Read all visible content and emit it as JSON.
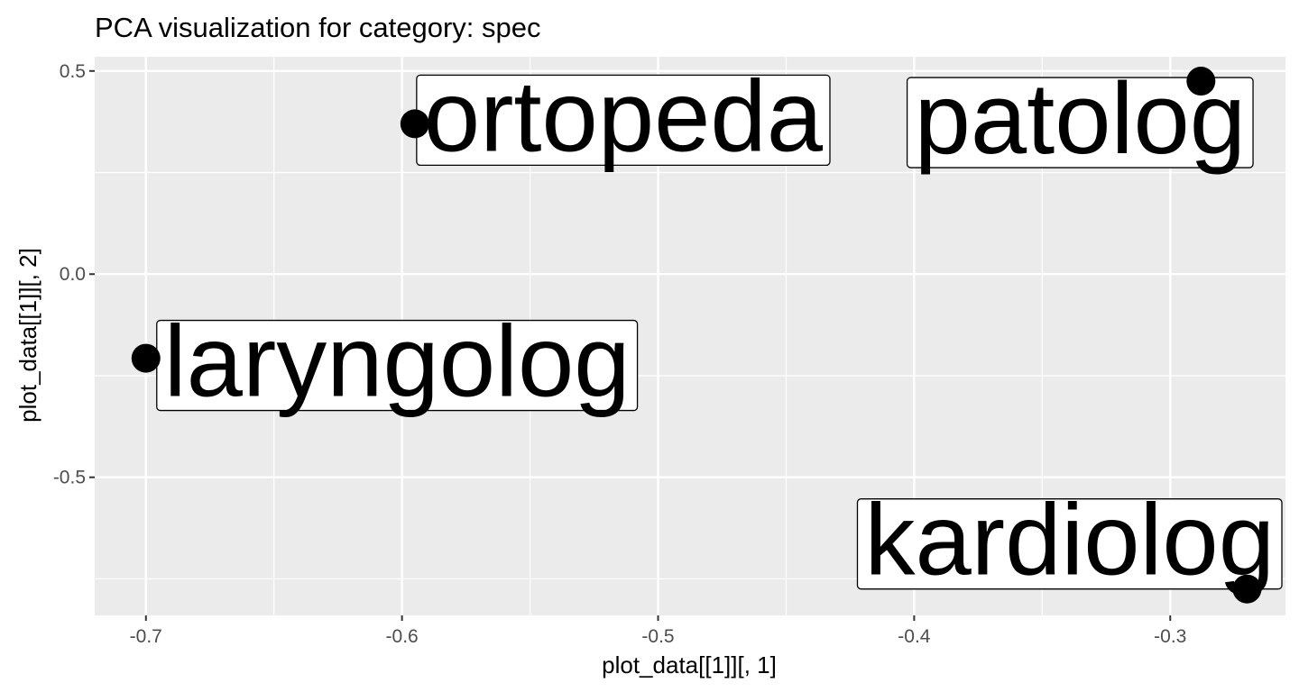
{
  "chart_data": {
    "type": "scatter",
    "title": "PCA visualization for category: spec",
    "xlabel": "plot_data[[1]][, 1]",
    "ylabel": "plot_data[[1]][, 2]",
    "xlim": [
      -0.72,
      -0.255
    ],
    "ylim": [
      -0.84,
      0.535
    ],
    "xticks": [
      -0.7,
      -0.6,
      -0.5,
      -0.4,
      -0.3
    ],
    "xtick_labels": [
      "-0.7",
      "-0.6",
      "-0.5",
      "-0.4",
      "-0.3"
    ],
    "yticks": [
      0.5,
      0.0,
      -0.5
    ],
    "ytick_labels": [
      "0.5",
      "0.0",
      "-0.5"
    ],
    "grid": true,
    "panel_color": "#ebebeb",
    "grid_color": "#ffffff",
    "point_color": "#000000",
    "points": [
      {
        "label": "ortopeda",
        "x": -0.595,
        "y": 0.37
      },
      {
        "label": "patolog",
        "x": -0.288,
        "y": 0.475
      },
      {
        "label": "laryngolog",
        "x": -0.7,
        "y": -0.207
      },
      {
        "label": "kardiolog",
        "x": -0.27,
        "y": -0.775
      }
    ]
  }
}
